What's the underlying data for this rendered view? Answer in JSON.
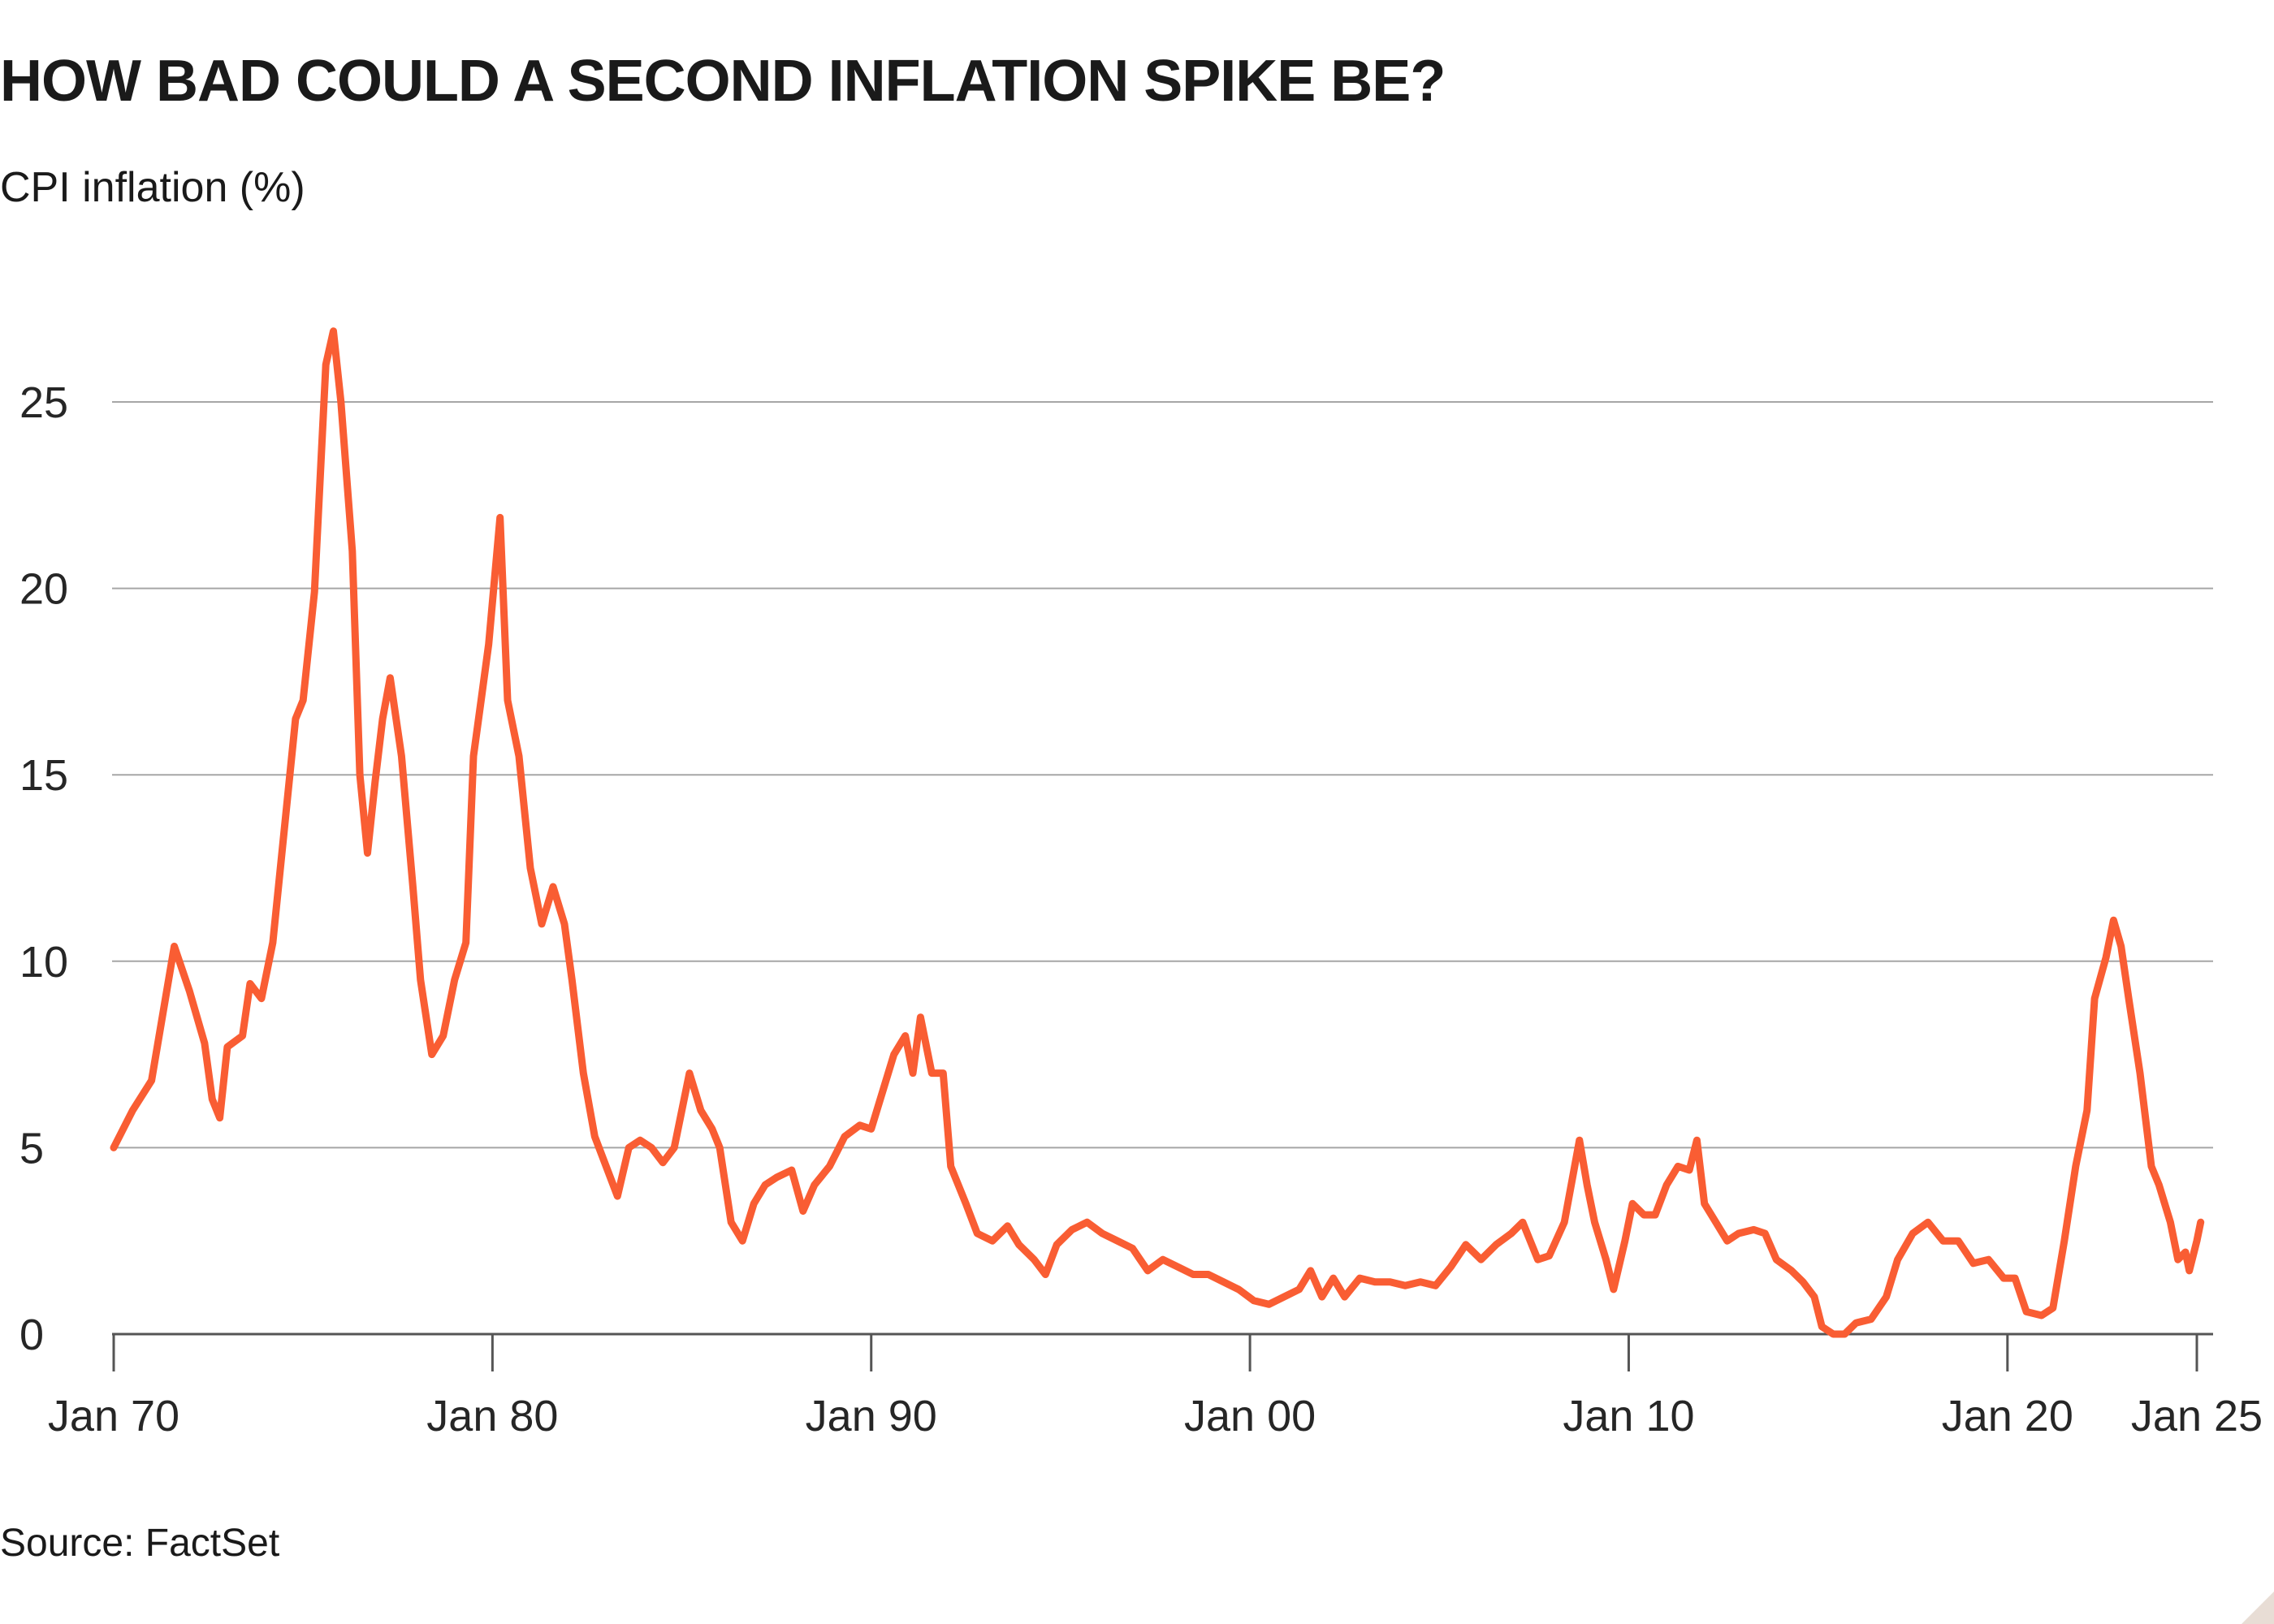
{
  "chart_data": {
    "type": "line",
    "title": "HOW BAD COULD A SECOND INFLATION SPIKE BE?",
    "subtitle": "CPI inflation (%)",
    "source": "Source: FactSet",
    "grid": true,
    "xlim": [
      1970,
      2025
    ],
    "xticks": [
      {
        "value": 1970,
        "label": "Jan 70"
      },
      {
        "value": 1980,
        "label": "Jan 80"
      },
      {
        "value": 1990,
        "label": "Jan 90"
      },
      {
        "value": 2000,
        "label": "Jan 00"
      },
      {
        "value": 2010,
        "label": "Jan 10"
      },
      {
        "value": 2020,
        "label": "Jan 20"
      },
      {
        "value": 2025,
        "label": "Jan 25"
      }
    ],
    "ylim": [
      0,
      27
    ],
    "yticks": [
      0,
      5,
      10,
      15,
      20,
      25
    ],
    "x": [
      1970.0,
      1970.5,
      1971.0,
      1971.6,
      1972.0,
      1972.4,
      1972.6,
      1972.8,
      1973.0,
      1973.4,
      1973.6,
      1973.9,
      1974.2,
      1974.5,
      1974.8,
      1975.0,
      1975.3,
      1975.6,
      1975.8,
      1976.0,
      1976.3,
      1976.5,
      1976.7,
      1976.9,
      1977.1,
      1977.3,
      1977.6,
      1977.9,
      1978.1,
      1978.4,
      1978.7,
      1979.0,
      1979.3,
      1979.5,
      1979.7,
      1979.9,
      1980.2,
      1980.4,
      1980.7,
      1981.0,
      1981.3,
      1981.6,
      1981.9,
      1982.1,
      1982.4,
      1982.7,
      1983.0,
      1983.3,
      1983.6,
      1983.9,
      1984.2,
      1984.5,
      1984.8,
      1985.2,
      1985.5,
      1985.8,
      1986.0,
      1986.3,
      1986.6,
      1986.9,
      1987.2,
      1987.5,
      1987.9,
      1988.2,
      1988.5,
      1988.9,
      1989.3,
      1989.7,
      1990.0,
      1990.3,
      1990.6,
      1990.9,
      1991.1,
      1991.3,
      1991.6,
      1991.9,
      1992.1,
      1992.5,
      1992.8,
      1993.2,
      1993.6,
      1993.9,
      1994.3,
      1994.6,
      1994.9,
      1995.3,
      1995.7,
      1996.1,
      1996.5,
      1996.9,
      1997.3,
      1997.7,
      1998.1,
      1998.5,
      1998.9,
      1999.3,
      1999.7,
      2000.1,
      2000.5,
      2000.9,
      2001.3,
      2001.6,
      2001.9,
      2002.2,
      2002.5,
      2002.9,
      2003.3,
      2003.7,
      2004.1,
      2004.5,
      2004.9,
      2005.3,
      2005.7,
      2006.1,
      2006.5,
      2006.9,
      2007.2,
      2007.6,
      2007.9,
      2008.3,
      2008.7,
      2008.9,
      2009.1,
      2009.4,
      2009.6,
      2009.9,
      2010.1,
      2010.4,
      2010.7,
      2011.0,
      2011.3,
      2011.6,
      2011.8,
      2012.0,
      2012.3,
      2012.6,
      2012.9,
      2013.3,
      2013.6,
      2013.9,
      2014.3,
      2014.6,
      2014.9,
      2015.1,
      2015.4,
      2015.7,
      2016.0,
      2016.4,
      2016.8,
      2017.1,
      2017.5,
      2017.9,
      2018.3,
      2018.7,
      2019.1,
      2019.5,
      2019.9,
      2020.2,
      2020.5,
      2020.9,
      2021.2,
      2021.5,
      2021.8,
      2022.1,
      2022.3,
      2022.6,
      2022.8,
      2023.0,
      2023.2,
      2023.5,
      2023.8,
      2024.0,
      2024.3,
      2024.5,
      2024.7,
      2024.8,
      2025.0,
      2025.1
    ],
    "series": [
      {
        "name": "CPI inflation",
        "color": "#f95d33",
        "values": [
          5.0,
          6.0,
          6.8,
          10.4,
          9.2,
          7.8,
          6.3,
          5.8,
          7.7,
          8.0,
          9.4,
          9.0,
          10.5,
          13.5,
          16.5,
          17.0,
          19.9,
          26.0,
          26.9,
          25.0,
          21.0,
          15.0,
          12.9,
          14.8,
          16.5,
          17.6,
          15.5,
          12.0,
          9.5,
          7.5,
          8.0,
          9.5,
          10.5,
          15.5,
          17.0,
          18.5,
          21.9,
          17.0,
          15.5,
          12.5,
          11.0,
          12.0,
          11.0,
          9.5,
          7.0,
          5.3,
          4.5,
          3.7,
          5.0,
          5.2,
          5.0,
          4.6,
          5.0,
          7.0,
          6.0,
          5.5,
          5.0,
          3.0,
          2.5,
          3.5,
          4.0,
          4.2,
          4.4,
          3.3,
          4.0,
          4.5,
          5.3,
          5.6,
          5.5,
          6.5,
          7.5,
          8.0,
          7.0,
          8.5,
          7.0,
          7.0,
          4.5,
          3.5,
          2.7,
          2.5,
          2.9,
          2.4,
          2.0,
          1.6,
          2.4,
          2.8,
          3.0,
          2.7,
          2.5,
          2.3,
          1.7,
          2.0,
          1.8,
          1.6,
          1.6,
          1.4,
          1.2,
          0.9,
          0.8,
          1.0,
          1.2,
          1.7,
          1.0,
          1.5,
          1.0,
          1.5,
          1.4,
          1.4,
          1.3,
          1.4,
          1.3,
          1.8,
          2.4,
          2.0,
          2.4,
          2.7,
          3.0,
          2.0,
          2.1,
          3.0,
          5.2,
          4.0,
          3.0,
          2.0,
          1.2,
          2.5,
          3.5,
          3.2,
          3.2,
          4.0,
          4.5,
          4.4,
          5.2,
          3.5,
          3.0,
          2.5,
          2.7,
          2.8,
          2.7,
          2.0,
          1.7,
          1.4,
          1.0,
          0.2,
          0.0,
          0.0,
          0.3,
          0.4,
          1.0,
          2.0,
          2.7,
          3.0,
          2.5,
          2.5,
          1.9,
          2.0,
          1.5,
          1.5,
          0.6,
          0.5,
          0.7,
          2.5,
          4.5,
          6.0,
          9.0,
          10.1,
          11.1,
          10.4,
          9.0,
          7.0,
          4.5,
          4.0,
          3.0,
          2.0,
          2.2,
          1.7,
          2.5,
          3.0
        ]
      }
    ]
  }
}
